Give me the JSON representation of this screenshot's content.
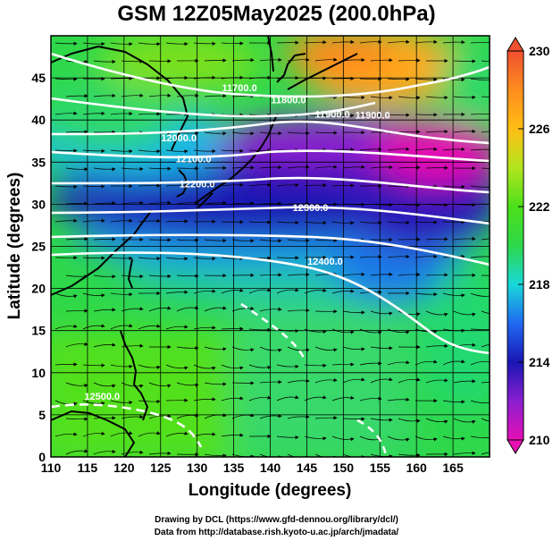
{
  "title": "GSM 12Z05May2025 (200.0hPa)",
  "xlabel": "Longitude (degrees)",
  "ylabel": "Latitude  (degrees)",
  "credits": {
    "line1": "Drawing by DCL (https://www.gfd-dennou.org/library/dcl/)",
    "line2": "Data from http://database.rish.kyoto-u.ac.jp/arch/jmadata/"
  },
  "map": {
    "lon_range": [
      110,
      170
    ],
    "lat_range": [
      0,
      50
    ],
    "x_ticks": [
      "110",
      "115",
      "120",
      "125",
      "130",
      "135",
      "140",
      "145",
      "150",
      "155",
      "160",
      "165"
    ],
    "y_ticks": [
      "0",
      "5",
      "10",
      "15",
      "20",
      "25",
      "30",
      "35",
      "40",
      "45"
    ],
    "grid": true
  },
  "colorbar": {
    "min": 210,
    "max": 230,
    "ticks": [
      "210",
      "214",
      "218",
      "222",
      "226",
      "230"
    ],
    "stops": [
      "#e60fb4",
      "#8a1fd0",
      "#1a16b4",
      "#1f6af0",
      "#18d8d8",
      "#2ed84a",
      "#4ce01a",
      "#b2e51e",
      "#ffbe14",
      "#ff8c1e",
      "#f05030"
    ]
  },
  "contours": [
    {
      "label": "11700.0",
      "lon": 135.8,
      "lat": 43.4
    },
    {
      "label": "11800.0",
      "lon": 142.5,
      "lat": 42.0
    },
    {
      "label": "11900.0",
      "lon": 148.5,
      "lat": 40.3
    },
    {
      "label": "11900.0",
      "lon": 154.0,
      "lat": 40.2
    },
    {
      "label": "12000.0",
      "lon": 127.5,
      "lat": 37.5
    },
    {
      "label": "12100.0",
      "lon": 129.5,
      "lat": 35.0
    },
    {
      "label": "12200.0",
      "lon": 130.0,
      "lat": 32.0
    },
    {
      "label": "12300.0",
      "lon": 145.5,
      "lat": 29.2
    },
    {
      "label": "12400.0",
      "lon": 147.5,
      "lat": 22.8
    },
    {
      "label": "12500.0",
      "lon": 117.0,
      "lat": 6.8
    }
  ]
}
